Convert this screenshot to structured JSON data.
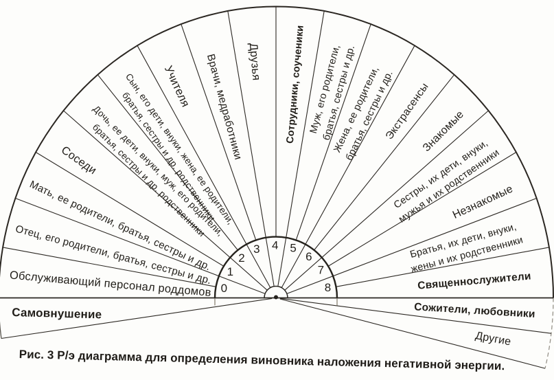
{
  "caption": "Рис. 3  Р/э диаграмма для определения виновника наложения негативной энергии.",
  "diagram": {
    "type": "semicircular-fan-dowsing-chart",
    "ink_color": "#2b2722",
    "scale_arc_color": "#25221d",
    "dashed_arc_color": "#8f8b82",
    "scale_numbers": [
      {
        "value": "0",
        "angle": 169
      },
      {
        "value": "1",
        "angle": 150
      },
      {
        "value": "2",
        "angle": 130.5
      },
      {
        "value": "3",
        "angle": 111.5
      },
      {
        "value": "4",
        "angle": 91
      },
      {
        "value": "5",
        "angle": 71
      },
      {
        "value": "6",
        "angle": 51.5
      },
      {
        "value": "7",
        "angle": 32
      },
      {
        "value": "8",
        "angle": 11.5
      }
    ],
    "sectors": [
      {
        "lines": [
          "Самовнушение"
        ],
        "from": 188,
        "to": 180,
        "label_angle": 184,
        "label_r": 320,
        "fs": 17,
        "bold": true,
        "rot": 1.5
      },
      {
        "lines": [
          "Обслуживающий персонал роддомов"
        ],
        "from": 180,
        "to": 170,
        "label_angle": 175,
        "label_r": 242,
        "fs": 16.5
      },
      {
        "lines": [
          "Отец, его родители, братья, сестры и др."
        ],
        "from": 170,
        "to": 160,
        "label_angle": 165,
        "label_r": 245,
        "fs": 15
      },
      {
        "lines": [
          "Мать, ее родители, братья, сестры и др."
        ],
        "from": 160,
        "to": 150,
        "label_angle": 155,
        "label_r": 250,
        "fs": 15
      },
      {
        "lines": [
          "Соседи"
        ],
        "from": 150,
        "to": 140,
        "label_angle": 145,
        "label_r": 350,
        "fs": 16.5
      },
      {
        "lines": [
          "Дочь, ее дети, внуки, муж, его родители,",
          "братья, сестры и др. родственники"
        ],
        "from": 140,
        "to": 130,
        "label_angle": 135,
        "label_r": 252,
        "fs": 13.5
      },
      {
        "lines": [
          "Сын, его дети, внуки, жена, ее родители,",
          "братья, сестры и др. родственники"
        ],
        "from": 130,
        "to": 120,
        "label_angle": 125,
        "label_r": 258,
        "fs": 13.5
      },
      {
        "lines": [
          "Учителя"
        ],
        "from": 120,
        "to": 110,
        "label_angle": 115,
        "label_r": 340,
        "fs": 16.5
      },
      {
        "lines": [
          "Врачи, медработники"
        ],
        "from": 110,
        "to": 100,
        "label_angle": 105,
        "label_r": 288,
        "fs": 15.5
      },
      {
        "lines": [
          "Друзья"
        ],
        "from": 100,
        "to": 90,
        "label_angle": 95,
        "label_r": 345,
        "fs": 16.5
      },
      {
        "lines": [
          "Сотрудники, соученики"
        ],
        "from": 90,
        "to": 80,
        "label_angle": 85,
        "label_r": 312,
        "fs": 14.5,
        "bold": true
      },
      {
        "lines": [
          "Муж, его родители,",
          "братья, сестры и др."
        ],
        "from": 80,
        "to": 70,
        "label_angle": 75,
        "label_r": 312,
        "fs": 14.5
      },
      {
        "lines": [
          "Жена, ее родители,",
          "братья, сестры и др."
        ],
        "from": 70,
        "to": 60,
        "label_angle": 65,
        "label_r": 298,
        "fs": 14.5
      },
      {
        "lines": [
          "Экстрасенсы"
        ],
        "from": 60,
        "to": 50,
        "label_angle": 55,
        "label_r": 332,
        "fs": 15.5
      },
      {
        "lines": [
          "Знакомые"
        ],
        "from": 50,
        "to": 40,
        "label_angle": 45,
        "label_r": 344,
        "fs": 16
      },
      {
        "lines": [
          "Сестры, их дети, внуки,",
          "мужья и их родственники"
        ],
        "from": 40,
        "to": 30,
        "label_angle": 35,
        "label_r": 300,
        "fs": 14.5
      },
      {
        "lines": [
          "Незнакомые"
        ],
        "from": 30,
        "to": 20,
        "label_angle": 25,
        "label_r": 332,
        "fs": 16
      },
      {
        "lines": [
          "Братья, их дети, внуки,",
          "жены и их родственники"
        ],
        "from": 20,
        "to": 10,
        "label_angle": 15,
        "label_r": 285,
        "fs": 14.5
      },
      {
        "lines": [
          "Священнослужители"
        ],
        "from": 10,
        "to": 0,
        "label_angle": 5,
        "label_r": 290,
        "fs": 15.5,
        "bold": true
      },
      {
        "lines": [
          "Сожители, любовники"
        ],
        "from": 0,
        "to": -7,
        "label_angle": -3.5,
        "label_r": 290,
        "fs": 15.5,
        "bold": true
      },
      {
        "lines": [
          "Другие"
        ],
        "from": -7,
        "to": -14,
        "label_angle": -10.5,
        "label_r": 322,
        "fs": 16
      }
    ]
  }
}
